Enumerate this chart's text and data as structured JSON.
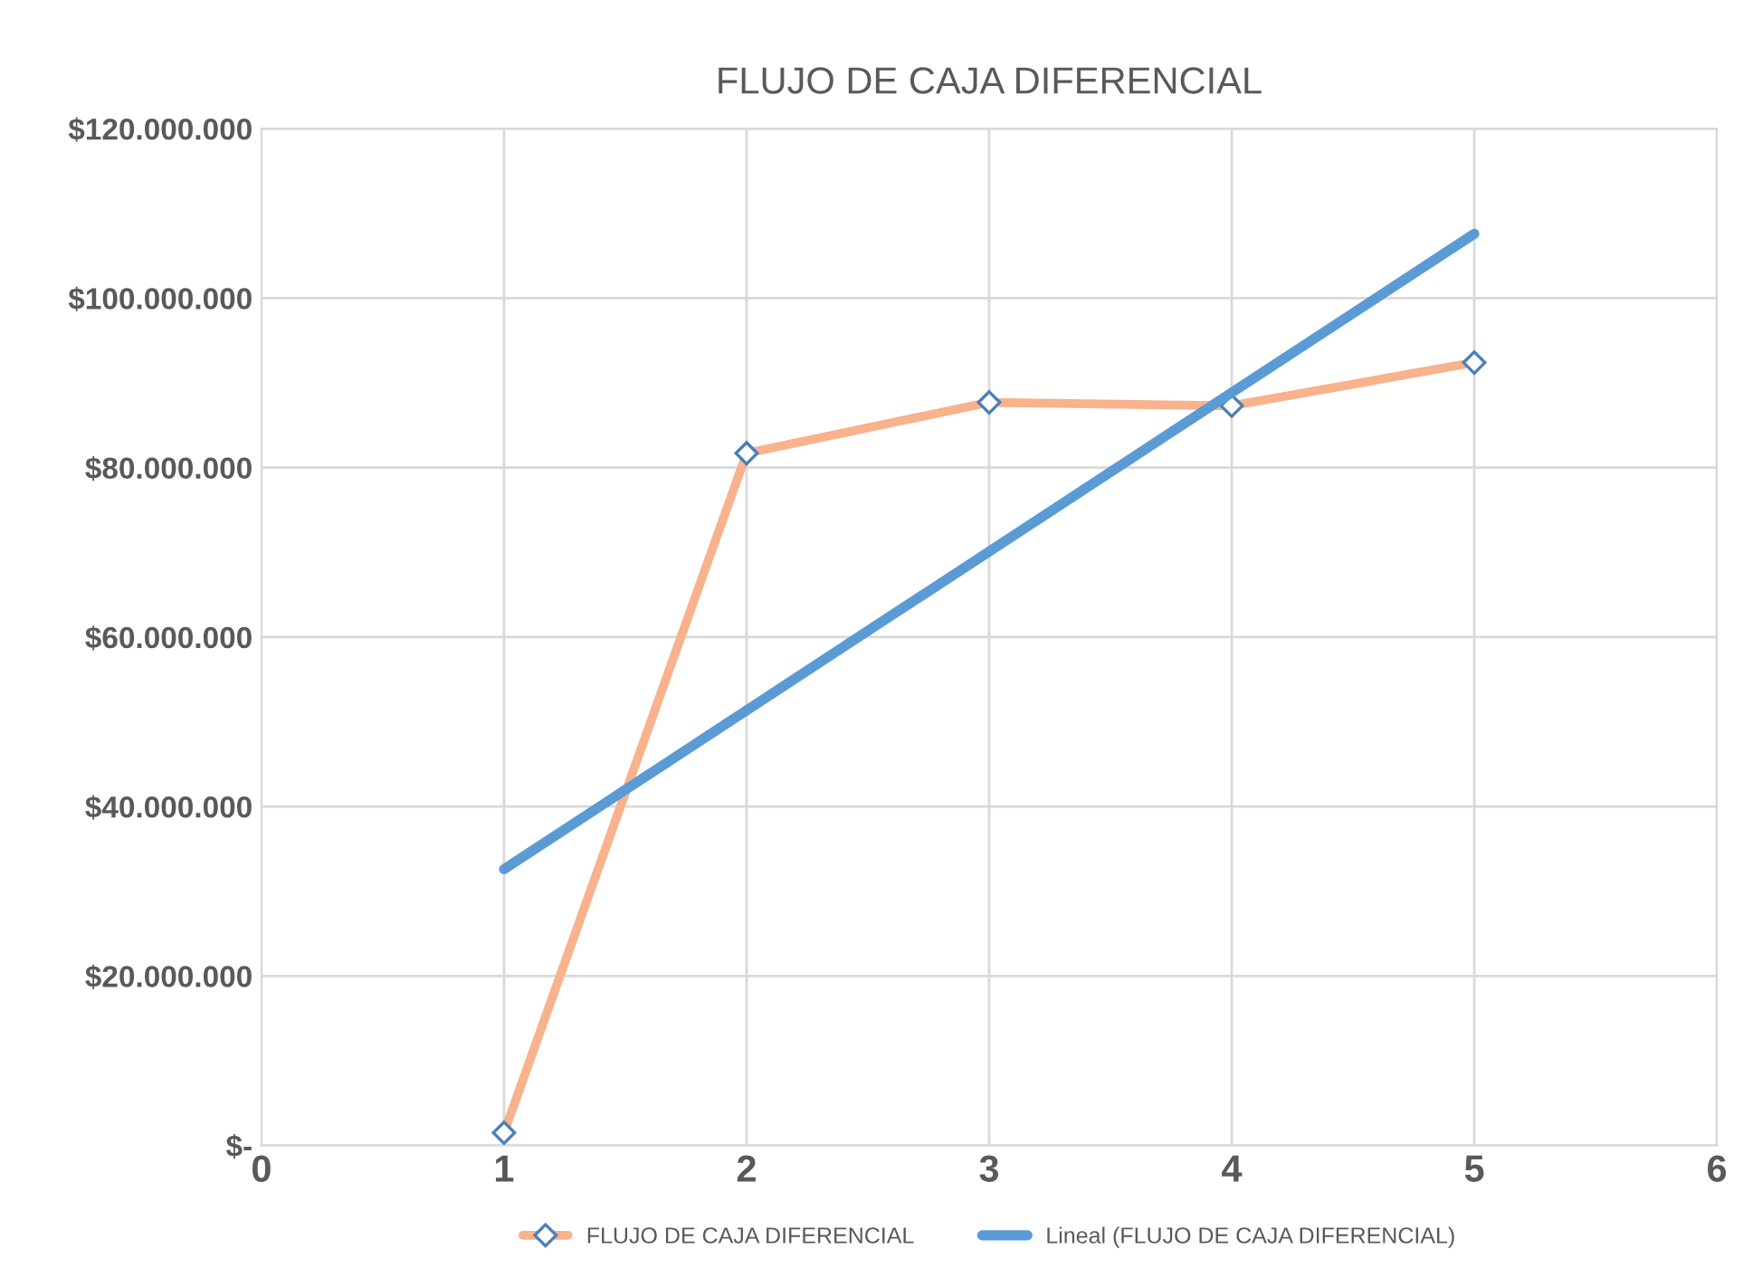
{
  "chart_data": {
    "type": "line",
    "title": "FLUJO DE CAJA DIFERENCIAL",
    "x": [
      1,
      2,
      3,
      4,
      5
    ],
    "series": [
      {
        "name": "FLUJO DE CAJA DIFERENCIAL",
        "color": "#f8b28c",
        "marker": "diamond",
        "values": [
          1500000,
          81700000,
          87700000,
          87300000,
          92400000
        ]
      },
      {
        "name": "Lineal (FLUJO DE CAJA DIFERENCIAL)",
        "color": "#5b9bd5",
        "marker": "none",
        "x": [
          1,
          5
        ],
        "values": [
          32600000,
          107600000
        ]
      }
    ],
    "xlim": [
      0,
      6
    ],
    "xticks": [
      0,
      1,
      2,
      3,
      4,
      5,
      6
    ],
    "ylim": [
      0,
      120000000
    ],
    "yticks": [
      {
        "value": 0,
        "label": "$-"
      },
      {
        "value": 20000000,
        "label": "$20.000.000"
      },
      {
        "value": 40000000,
        "label": "$40.000.000"
      },
      {
        "value": 60000000,
        "label": "$60.000.000"
      },
      {
        "value": 80000000,
        "label": "$80.000.000"
      },
      {
        "value": 100000000,
        "label": "$100.000.000"
      },
      {
        "value": 120000000,
        "label": "$120.000.000"
      }
    ],
    "grid": true,
    "legend": "bottom",
    "line_style": "solid"
  }
}
